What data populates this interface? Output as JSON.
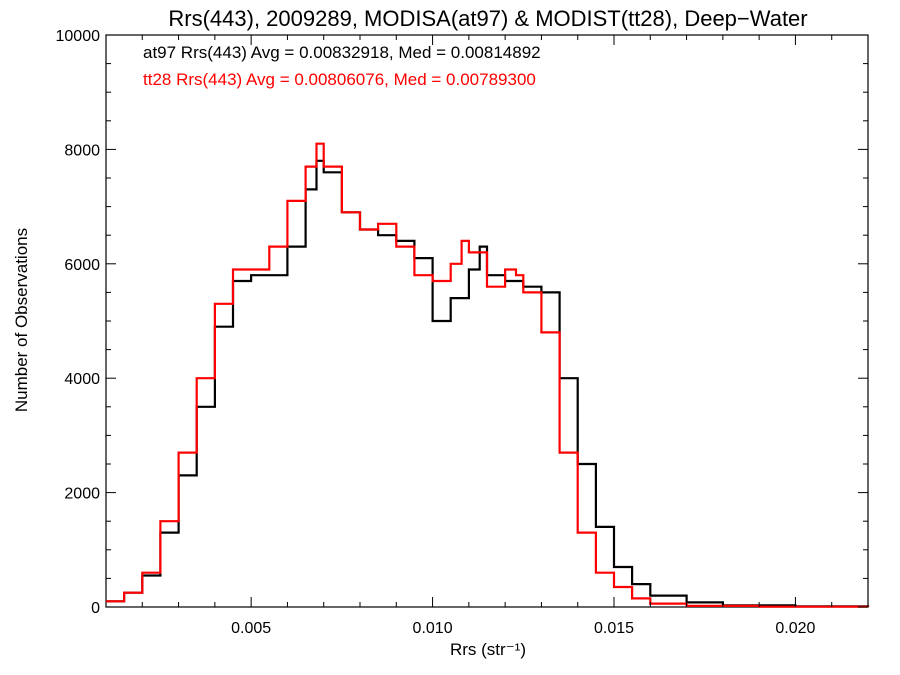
{
  "chart_data": {
    "type": "line",
    "title": "Rrs(443), 2009289, MODISA(at97) & MODIST(tt28), Deep−Water",
    "xlabel": "Rrs (str⁻¹)",
    "ylabel": "Number of Observations",
    "xlim": [
      0.001,
      0.022
    ],
    "ylim": [
      0,
      10000
    ],
    "xticks": [
      {
        "value": 0.005,
        "label": "0.005"
      },
      {
        "value": 0.01,
        "label": "0.010"
      },
      {
        "value": 0.015,
        "label": "0.015"
      },
      {
        "value": 0.02,
        "label": "0.020"
      }
    ],
    "yticks": [
      {
        "value": 0,
        "label": "0"
      },
      {
        "value": 2000,
        "label": "2000"
      },
      {
        "value": 4000,
        "label": "4000"
      },
      {
        "value": 6000,
        "label": "6000"
      },
      {
        "value": 8000,
        "label": "8000"
      },
      {
        "value": 10000,
        "label": "10000"
      }
    ],
    "grid": false,
    "legend_placement": "top-left",
    "step": true,
    "series": [
      {
        "name": "at97 Rrs(443) Avg = 0.00832918, Med = 0.00814892",
        "color": "#000000",
        "points": [
          [
            0.001,
            100
          ],
          [
            0.0015,
            250
          ],
          [
            0.002,
            550
          ],
          [
            0.0025,
            1300
          ],
          [
            0.003,
            2300
          ],
          [
            0.0035,
            3500
          ],
          [
            0.004,
            4900
          ],
          [
            0.0045,
            5700
          ],
          [
            0.005,
            5800
          ],
          [
            0.0055,
            5800
          ],
          [
            0.006,
            6300
          ],
          [
            0.0065,
            7300
          ],
          [
            0.0068,
            7800
          ],
          [
            0.007,
            7600
          ],
          [
            0.0075,
            6900
          ],
          [
            0.008,
            6600
          ],
          [
            0.0085,
            6500
          ],
          [
            0.009,
            6400
          ],
          [
            0.0095,
            6100
          ],
          [
            0.01,
            5000
          ],
          [
            0.0105,
            5400
          ],
          [
            0.011,
            5900
          ],
          [
            0.0113,
            6300
          ],
          [
            0.0115,
            5800
          ],
          [
            0.012,
            5700
          ],
          [
            0.0125,
            5600
          ],
          [
            0.013,
            5500
          ],
          [
            0.0135,
            4000
          ],
          [
            0.014,
            2500
          ],
          [
            0.0145,
            1400
          ],
          [
            0.015,
            700
          ],
          [
            0.0155,
            400
          ],
          [
            0.016,
            200
          ],
          [
            0.017,
            80
          ],
          [
            0.018,
            30
          ],
          [
            0.02,
            10
          ],
          [
            0.022,
            0
          ]
        ]
      },
      {
        "name": "tt28 Rrs(443) Avg = 0.00806076, Med = 0.00789300",
        "color": "#ff0000",
        "points": [
          [
            0.001,
            100
          ],
          [
            0.0015,
            250
          ],
          [
            0.002,
            600
          ],
          [
            0.0025,
            1500
          ],
          [
            0.003,
            2700
          ],
          [
            0.0035,
            4000
          ],
          [
            0.004,
            5300
          ],
          [
            0.0045,
            5900
          ],
          [
            0.005,
            5900
          ],
          [
            0.0055,
            6300
          ],
          [
            0.006,
            7100
          ],
          [
            0.0065,
            7700
          ],
          [
            0.0068,
            8100
          ],
          [
            0.007,
            7700
          ],
          [
            0.0075,
            6900
          ],
          [
            0.008,
            6600
          ],
          [
            0.0085,
            6700
          ],
          [
            0.009,
            6300
          ],
          [
            0.0095,
            5800
          ],
          [
            0.01,
            5700
          ],
          [
            0.0105,
            6000
          ],
          [
            0.0108,
            6400
          ],
          [
            0.011,
            6200
          ],
          [
            0.0115,
            5600
          ],
          [
            0.012,
            5900
          ],
          [
            0.0123,
            5800
          ],
          [
            0.0125,
            5500
          ],
          [
            0.013,
            4800
          ],
          [
            0.0135,
            2700
          ],
          [
            0.014,
            1300
          ],
          [
            0.0145,
            600
          ],
          [
            0.015,
            350
          ],
          [
            0.0155,
            150
          ],
          [
            0.016,
            60
          ],
          [
            0.017,
            20
          ],
          [
            0.019,
            5
          ],
          [
            0.022,
            0
          ]
        ]
      }
    ]
  }
}
